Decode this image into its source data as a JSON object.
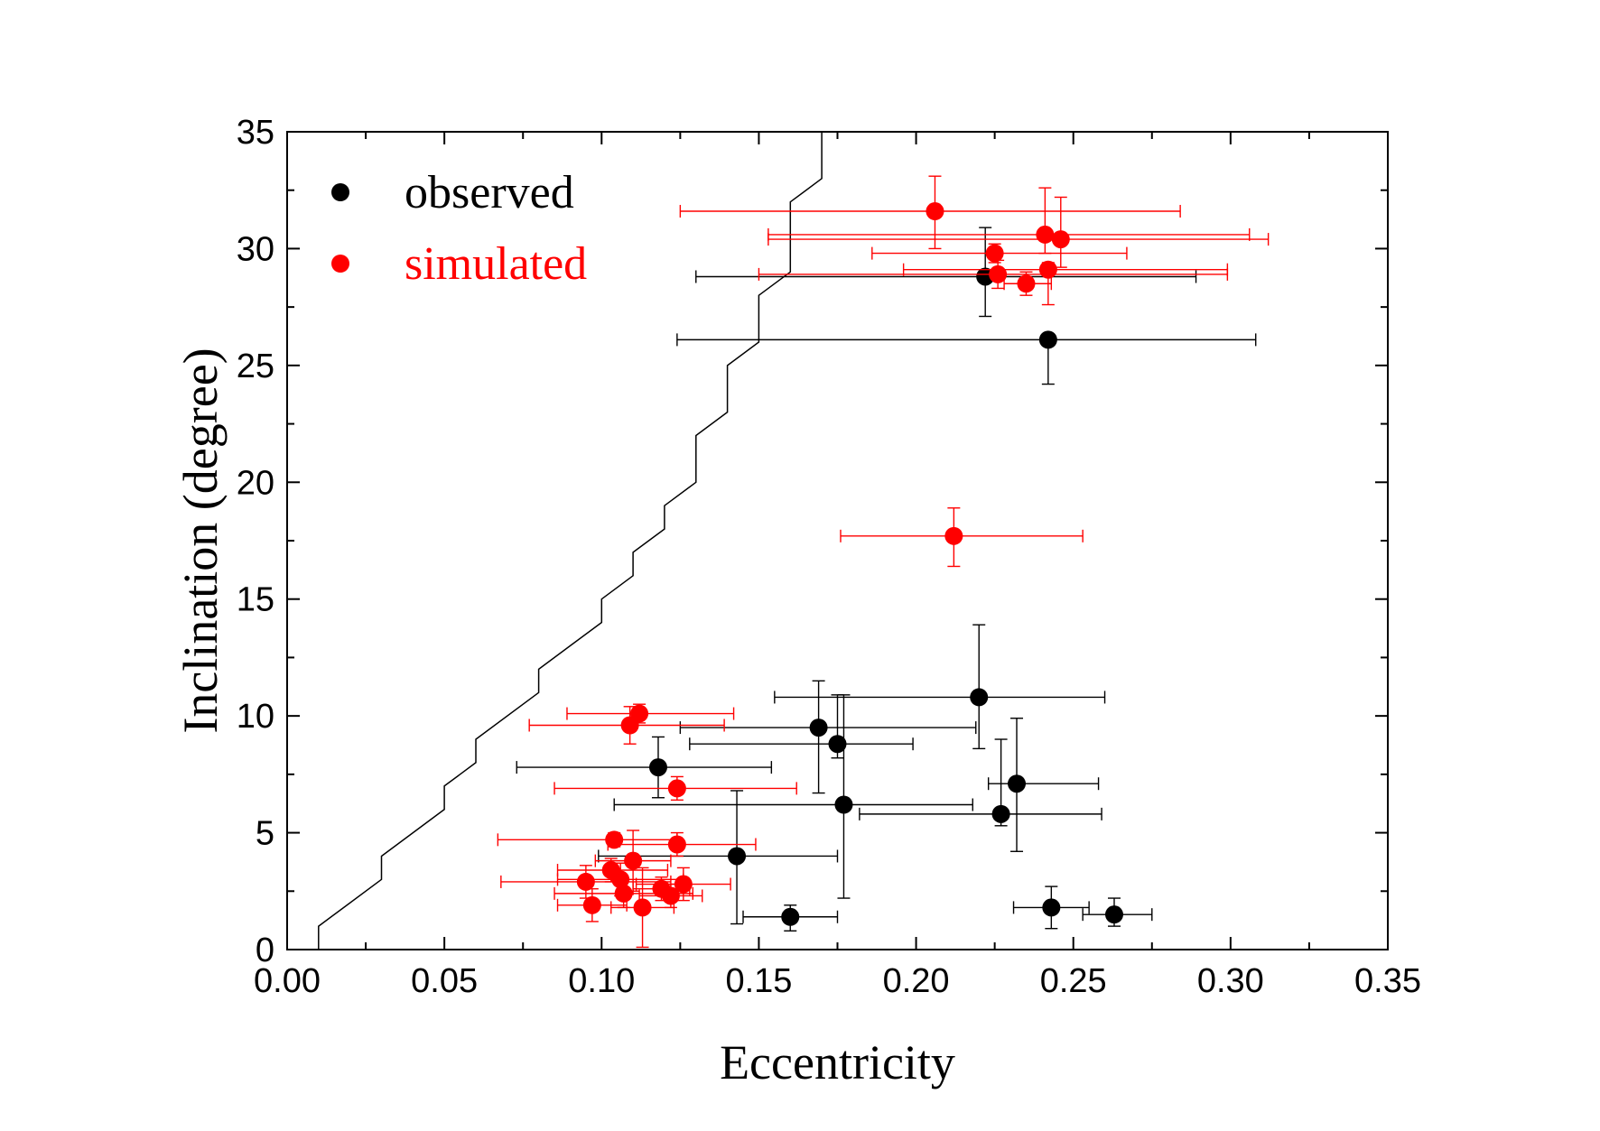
{
  "chart_data": {
    "type": "scatter",
    "title": "",
    "xlabel": "Eccentricity",
    "ylabel": "Inclination (degree)",
    "xlim": [
      0.0,
      0.35
    ],
    "ylim": [
      0,
      35
    ],
    "xticks": [
      "0.00",
      "0.05",
      "0.10",
      "0.15",
      "0.20",
      "0.25",
      "0.30",
      "0.35"
    ],
    "yticks": [
      "0",
      "5",
      "10",
      "15",
      "20",
      "25",
      "30",
      "35"
    ],
    "grid": false,
    "legend_position": "top-left",
    "boundary_line": {
      "color": "#000000",
      "points": [
        [
          0.01,
          0
        ],
        [
          0.01,
          1
        ],
        [
          0.03,
          3
        ],
        [
          0.03,
          4
        ],
        [
          0.05,
          6
        ],
        [
          0.05,
          7
        ],
        [
          0.06,
          8
        ],
        [
          0.06,
          9
        ],
        [
          0.08,
          11
        ],
        [
          0.08,
          12
        ],
        [
          0.1,
          14
        ],
        [
          0.1,
          15
        ],
        [
          0.11,
          16
        ],
        [
          0.11,
          17
        ],
        [
          0.12,
          18
        ],
        [
          0.12,
          19
        ],
        [
          0.13,
          20
        ],
        [
          0.13,
          22
        ],
        [
          0.14,
          23
        ],
        [
          0.14,
          25
        ],
        [
          0.15,
          26
        ],
        [
          0.15,
          28
        ],
        [
          0.16,
          29
        ],
        [
          0.16,
          32
        ],
        [
          0.17,
          33
        ],
        [
          0.17,
          35
        ]
      ]
    },
    "series": [
      {
        "name": "observed",
        "color": "#000000",
        "points": [
          {
            "x": 0.118,
            "y": 7.8,
            "xerr": [
              0.045,
              0.036
            ],
            "yerr": [
              1.3,
              1.3
            ]
          },
          {
            "x": 0.143,
            "y": 4.0,
            "xerr": [
              0.044,
              0.032
            ],
            "yerr": [
              2.9,
              2.8
            ]
          },
          {
            "x": 0.16,
            "y": 1.4,
            "xerr": [
              0.015,
              0.015
            ],
            "yerr": [
              0.6,
              0.5
            ]
          },
          {
            "x": 0.169,
            "y": 9.5,
            "xerr": [
              0.044,
              0.05
            ],
            "yerr": [
              2.8,
              2.0
            ]
          },
          {
            "x": 0.175,
            "y": 8.8,
            "xerr": [
              0.047,
              0.024
            ],
            "yerr": [
              0.6,
              2.1
            ]
          },
          {
            "x": 0.177,
            "y": 6.2,
            "xerr": [
              0.073,
              0.041
            ],
            "yerr": [
              4.0,
              4.7
            ]
          },
          {
            "x": 0.22,
            "y": 10.8,
            "xerr": [
              0.065,
              0.04
            ],
            "yerr": [
              2.2,
              3.1
            ]
          },
          {
            "x": 0.222,
            "y": 28.8,
            "xerr": [
              0.092,
              0.067
            ],
            "yerr": [
              1.7,
              2.1
            ]
          },
          {
            "x": 0.227,
            "y": 5.8,
            "xerr": [
              0.045,
              0.032
            ],
            "yerr": [
              0.5,
              3.2
            ]
          },
          {
            "x": 0.232,
            "y": 7.1,
            "xerr": [
              0.009,
              0.026
            ],
            "yerr": [
              2.9,
              2.8
            ]
          },
          {
            "x": 0.242,
            "y": 26.1,
            "xerr": [
              0.118,
              0.066
            ],
            "yerr": [
              1.9,
              0
            ]
          },
          {
            "x": 0.243,
            "y": 1.8,
            "xerr": [
              0.012,
              0.012
            ],
            "yerr": [
              0.9,
              0.9
            ]
          },
          {
            "x": 0.263,
            "y": 1.5,
            "xerr": [
              0.01,
              0.012
            ],
            "yerr": [
              0.5,
              0.7
            ]
          }
        ]
      },
      {
        "name": "simulated",
        "color": "#ff0000",
        "points": [
          {
            "x": 0.095,
            "y": 2.9,
            "xerr": [
              0.027,
              0.027
            ],
            "yerr": [
              0.7,
              0.7
            ]
          },
          {
            "x": 0.097,
            "y": 1.9,
            "xerr": [
              0.011,
              0.011
            ],
            "yerr": [
              0.7,
              0.7
            ]
          },
          {
            "x": 0.103,
            "y": 3.4,
            "xerr": [
              0.017,
              0.018
            ],
            "yerr": [
              0.5,
              0.5
            ]
          },
          {
            "x": 0.104,
            "y": 4.7,
            "xerr": [
              0.037,
              0.02
            ],
            "yerr": [
              0.3,
              0.3
            ]
          },
          {
            "x": 0.106,
            "y": 3.0,
            "xerr": [
              0.02,
              0.02
            ],
            "yerr": [
              0.7,
              0.7
            ]
          },
          {
            "x": 0.107,
            "y": 2.4,
            "xerr": [
              0.022,
              0.022
            ],
            "yerr": [
              0.6,
              0.6
            ]
          },
          {
            "x": 0.109,
            "y": 9.6,
            "xerr": [
              0.032,
              0.03
            ],
            "yerr": [
              0.8,
              0.8
            ]
          },
          {
            "x": 0.11,
            "y": 3.8,
            "xerr": [
              0.012,
              0.012
            ],
            "yerr": [
              1.3,
              1.3
            ]
          },
          {
            "x": 0.112,
            "y": 10.1,
            "xerr": [
              0.023,
              0.03
            ],
            "yerr": [
              0.4,
              0.4
            ]
          },
          {
            "x": 0.113,
            "y": 1.8,
            "xerr": [
              0.01,
              0.01
            ],
            "yerr": [
              1.7,
              1.7
            ]
          },
          {
            "x": 0.119,
            "y": 2.6,
            "xerr": [
              0.009,
              0.009
            ],
            "yerr": [
              0.5,
              0.5
            ]
          },
          {
            "x": 0.122,
            "y": 2.3,
            "xerr": [
              0.01,
              0.01
            ],
            "yerr": [
              0.5,
              0.5
            ]
          },
          {
            "x": 0.124,
            "y": 4.5,
            "xerr": [
              0.022,
              0.025
            ],
            "yerr": [
              0.5,
              0.5
            ]
          },
          {
            "x": 0.124,
            "y": 6.9,
            "xerr": [
              0.039,
              0.038
            ],
            "yerr": [
              0.5,
              0.5
            ]
          },
          {
            "x": 0.126,
            "y": 2.8,
            "xerr": [
              0.015,
              0.015
            ],
            "yerr": [
              0.7,
              0.7
            ]
          },
          {
            "x": 0.206,
            "y": 31.6,
            "xerr": [
              0.081,
              0.078
            ],
            "yerr": [
              1.6,
              1.5
            ]
          },
          {
            "x": 0.212,
            "y": 17.7,
            "xerr": [
              0.036,
              0.041
            ],
            "yerr": [
              1.3,
              1.2
            ]
          },
          {
            "x": 0.225,
            "y": 29.8,
            "xerr": [
              0.039,
              0.042
            ],
            "yerr": [
              0.4,
              0.4
            ]
          },
          {
            "x": 0.226,
            "y": 28.9,
            "xerr": [
              0.076,
              0.073
            ],
            "yerr": [
              0.6,
              0.6
            ]
          },
          {
            "x": 0.235,
            "y": 28.5,
            "xerr": [
              0.007,
              0.008
            ],
            "yerr": [
              0.5,
              0.5
            ]
          },
          {
            "x": 0.241,
            "y": 30.6,
            "xerr": [
              0.088,
              0.065
            ],
            "yerr": [
              0.8,
              2.0
            ]
          },
          {
            "x": 0.242,
            "y": 29.1,
            "xerr": [
              0.046,
              0.057
            ],
            "yerr": [
              1.5,
              0.3
            ]
          },
          {
            "x": 0.246,
            "y": 30.4,
            "xerr": [
              0.093,
              0.066
            ],
            "yerr": [
              1.2,
              1.8
            ]
          }
        ]
      }
    ]
  }
}
